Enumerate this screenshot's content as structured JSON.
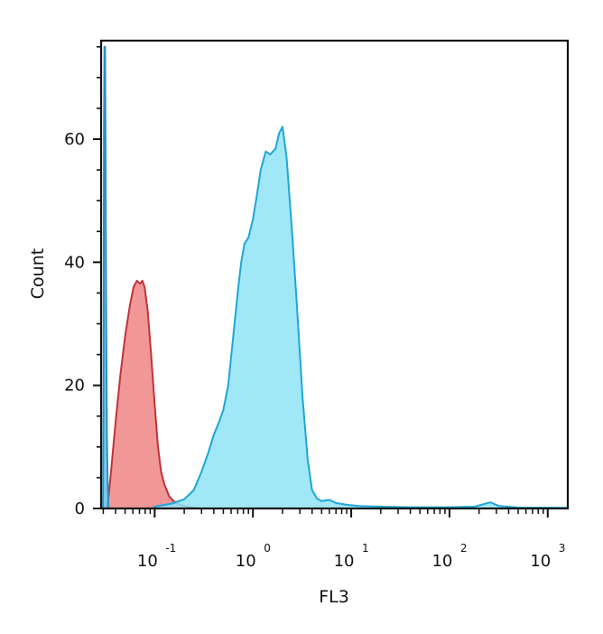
{
  "chart_data": {
    "type": "area",
    "title": "",
    "xlabel": "FL3",
    "ylabel": "Count",
    "x_scale": "log",
    "xlim": [
      0.0285,
      1600
    ],
    "ylim": [
      0,
      76
    ],
    "grid": false,
    "legend": "none",
    "y_ticks": [
      0,
      20,
      40,
      60
    ],
    "x_ticks": [
      {
        "base": "10",
        "exp": "-1",
        "value": 0.1
      },
      {
        "base": "10",
        "exp": "0",
        "value": 1
      },
      {
        "base": "10",
        "exp": "1",
        "value": 10
      },
      {
        "base": "10",
        "exp": "2",
        "value": 100
      },
      {
        "base": "10",
        "exp": "3",
        "value": 1000
      }
    ],
    "series": [
      {
        "color": "#f08585",
        "stroke": "#c0333a",
        "points": [
          [
            0.032,
            0
          ],
          [
            0.034,
            2
          ],
          [
            0.036,
            6
          ],
          [
            0.04,
            14
          ],
          [
            0.045,
            22
          ],
          [
            0.05,
            28
          ],
          [
            0.056,
            33
          ],
          [
            0.061,
            36
          ],
          [
            0.066,
            37
          ],
          [
            0.071,
            36.5
          ],
          [
            0.075,
            37
          ],
          [
            0.079,
            36
          ],
          [
            0.085,
            32
          ],
          [
            0.092,
            25
          ],
          [
            0.1,
            17
          ],
          [
            0.108,
            10
          ],
          [
            0.116,
            6
          ],
          [
            0.125,
            4
          ],
          [
            0.14,
            2
          ],
          [
            0.16,
            1
          ],
          [
            0.2,
            0.4
          ],
          [
            0.3,
            0
          ]
        ]
      },
      {
        "color": "#8fe3f7",
        "stroke": "#1fa6d6",
        "points": [
          [
            0.1,
            0.3
          ],
          [
            0.15,
            0.8
          ],
          [
            0.2,
            1.5
          ],
          [
            0.25,
            3
          ],
          [
            0.3,
            6
          ],
          [
            0.35,
            9
          ],
          [
            0.4,
            12
          ],
          [
            0.45,
            14
          ],
          [
            0.5,
            16
          ],
          [
            0.56,
            20
          ],
          [
            0.63,
            28
          ],
          [
            0.7,
            35
          ],
          [
            0.76,
            40
          ],
          [
            0.82,
            43
          ],
          [
            0.9,
            44
          ],
          [
            1.0,
            47
          ],
          [
            1.1,
            51
          ],
          [
            1.2,
            55
          ],
          [
            1.35,
            58
          ],
          [
            1.5,
            57.5
          ],
          [
            1.7,
            58.5
          ],
          [
            1.85,
            61
          ],
          [
            2.0,
            62
          ],
          [
            2.2,
            57
          ],
          [
            2.5,
            45
          ],
          [
            2.8,
            33
          ],
          [
            3.2,
            18
          ],
          [
            3.6,
            8
          ],
          [
            4.0,
            3
          ],
          [
            4.5,
            1.6
          ],
          [
            5,
            1.2
          ],
          [
            6,
            1.4
          ],
          [
            7,
            0.9
          ],
          [
            9,
            0.6
          ],
          [
            12,
            0.4
          ],
          [
            20,
            0.3
          ],
          [
            40,
            0.2
          ],
          [
            100,
            0.2
          ],
          [
            180,
            0.3
          ],
          [
            260,
            1
          ],
          [
            320,
            0.4
          ],
          [
            500,
            0.15
          ],
          [
            1600,
            0.1
          ]
        ]
      },
      {
        "color": "#67c5e3",
        "stroke": "#2b8fc4",
        "points": [
          [
            0.0298,
            0
          ],
          [
            0.0302,
            20
          ],
          [
            0.0305,
            62
          ],
          [
            0.0308,
            75
          ],
          [
            0.0313,
            75
          ],
          [
            0.0316,
            60
          ],
          [
            0.032,
            35
          ],
          [
            0.0326,
            12
          ],
          [
            0.0333,
            3
          ],
          [
            0.034,
            0
          ]
        ]
      }
    ]
  }
}
